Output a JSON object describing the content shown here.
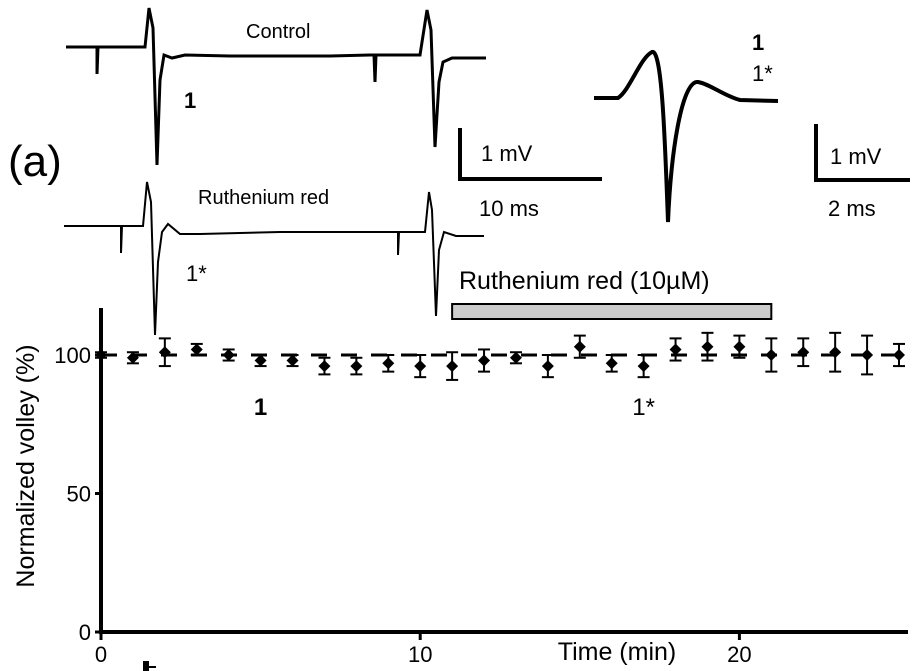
{
  "panel_label": "(a)",
  "inset": {
    "control_label": "Control",
    "ruthenium_label": "Ruthenium red",
    "marker_control": "1",
    "marker_ruthenium": "1*",
    "overlay_marker_1": "1",
    "overlay_marker_2": "1*",
    "scale_left": {
      "voltage": "1 mV",
      "time": "10 ms"
    },
    "scale_right": {
      "voltage": "1 mV",
      "time": "2 ms"
    }
  },
  "drug_bar_label": "Ruthenium red (10µM)",
  "chart_data": {
    "type": "scatter",
    "xlabel": "Time (min)",
    "ylabel": "Normalized volley (%)",
    "xlim": [
      0,
      25
    ],
    "ylim": [
      0,
      120
    ],
    "xticks": [
      "0",
      "10",
      "20"
    ],
    "yticks": [
      "0",
      "50",
      "100"
    ],
    "drug_application": {
      "start": 11,
      "end": 21
    },
    "baseline_value": 100,
    "points": [
      {
        "x": 0,
        "y": 100,
        "err": 1
      },
      {
        "x": 1,
        "y": 99,
        "err": 2
      },
      {
        "x": 2,
        "y": 101,
        "err": 5
      },
      {
        "x": 3,
        "y": 102,
        "err": 2
      },
      {
        "x": 4,
        "y": 100,
        "err": 2
      },
      {
        "x": 5,
        "y": 98,
        "err": 2
      },
      {
        "x": 6,
        "y": 98,
        "err": 2
      },
      {
        "x": 7,
        "y": 96,
        "err": 3
      },
      {
        "x": 8,
        "y": 96,
        "err": 3
      },
      {
        "x": 9,
        "y": 97,
        "err": 3
      },
      {
        "x": 10,
        "y": 96,
        "err": 4
      },
      {
        "x": 11,
        "y": 96,
        "err": 5
      },
      {
        "x": 12,
        "y": 98,
        "err": 4
      },
      {
        "x": 13,
        "y": 99,
        "err": 2
      },
      {
        "x": 14,
        "y": 96,
        "err": 4
      },
      {
        "x": 15,
        "y": 103,
        "err": 4
      },
      {
        "x": 16,
        "y": 97,
        "err": 3
      },
      {
        "x": 17,
        "y": 96,
        "err": 4
      },
      {
        "x": 18,
        "y": 102,
        "err": 4
      },
      {
        "x": 19,
        "y": 103,
        "err": 5
      },
      {
        "x": 20,
        "y": 103,
        "err": 4
      },
      {
        "x": 21,
        "y": 100,
        "err": 6
      },
      {
        "x": 22,
        "y": 101,
        "err": 5
      },
      {
        "x": 23,
        "y": 101,
        "err": 7
      },
      {
        "x": 24,
        "y": 100,
        "err": 7
      },
      {
        "x": 25,
        "y": 100,
        "err": 4
      }
    ],
    "annotations": [
      {
        "text": "1",
        "x": 5
      },
      {
        "text": "1*",
        "x": 17
      }
    ]
  }
}
